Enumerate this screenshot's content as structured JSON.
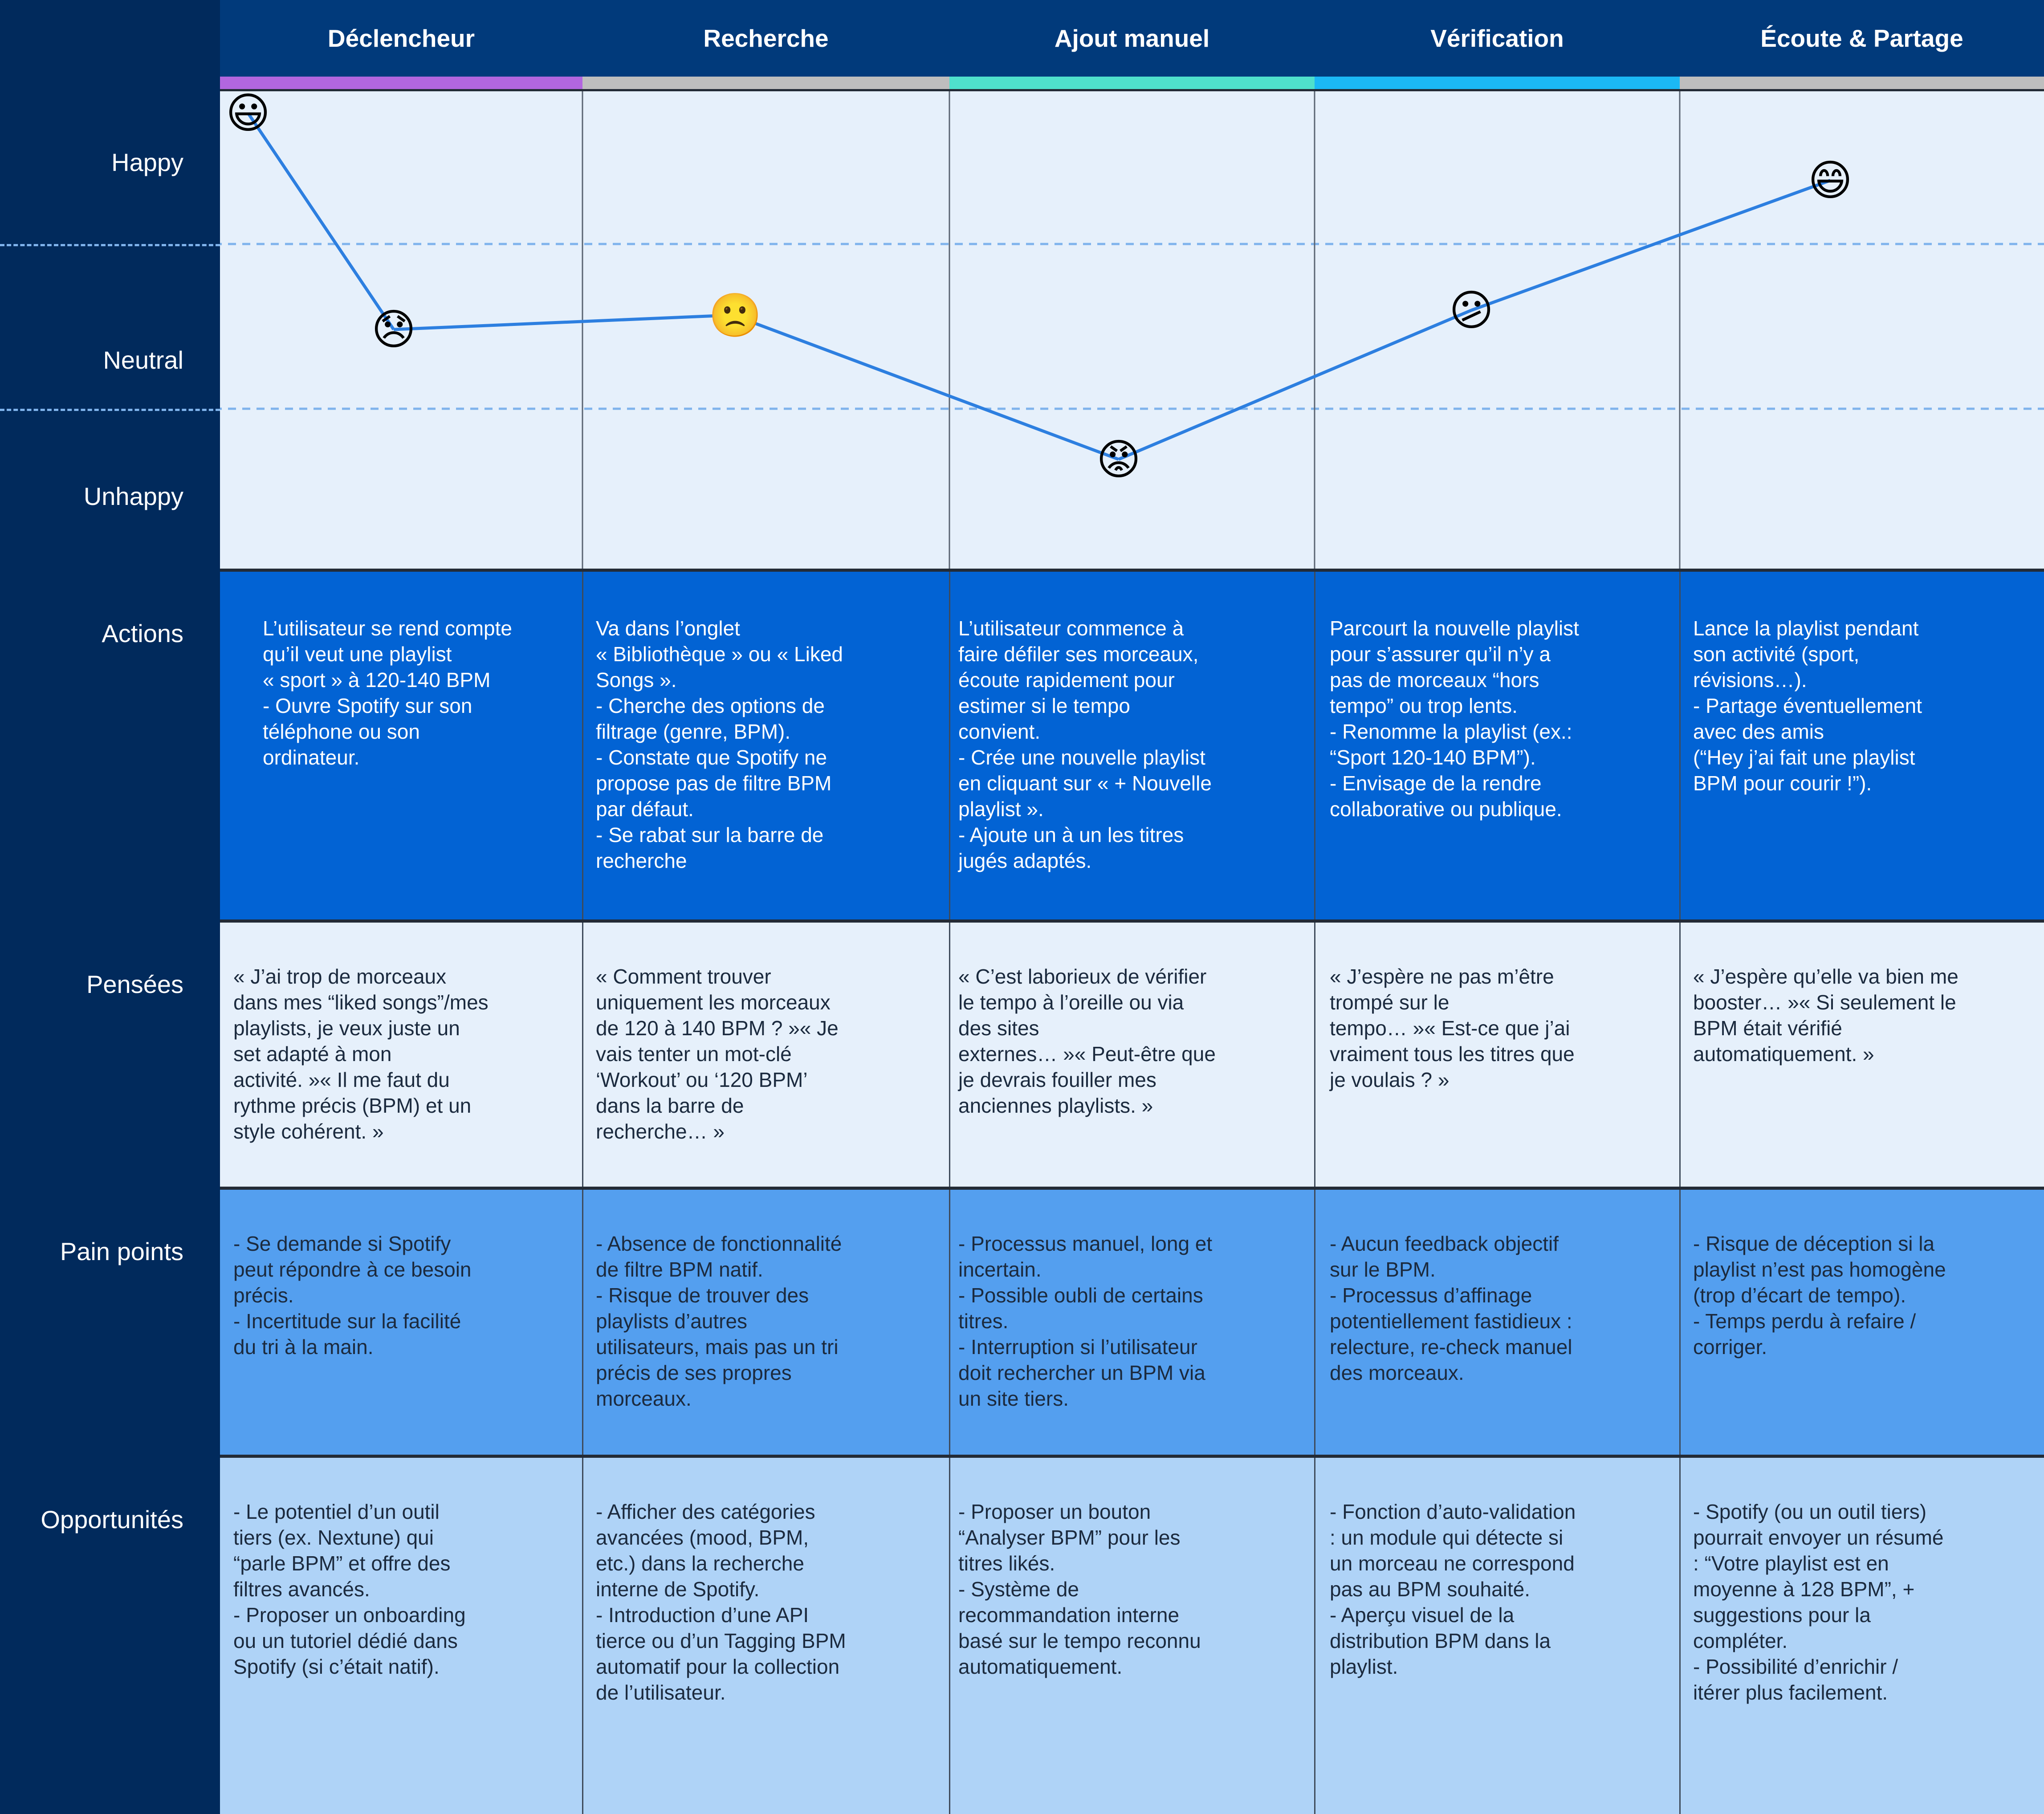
{
  "stages": [
    {
      "label": "Déclencheur",
      "accent": "#B266DF"
    },
    {
      "label": "Recherche",
      "accent": "#BEBEBE"
    },
    {
      "label": "Ajout manuel",
      "accent": "#4FE0CC"
    },
    {
      "label": "Vérification",
      "accent": "#1BB8F5"
    },
    {
      "label": "Écoute & Partage",
      "accent": "#BEBEBE"
    }
  ],
  "emotion_levels": {
    "happy": "Happy",
    "neutral": "Neutral",
    "unhappy": "Unhappy"
  },
  "emotion_points": [
    {
      "emoji": "😃",
      "name": "grinning-face-icon",
      "level": 0.95
    },
    {
      "emoji": "😞",
      "name": "disappointed-face-icon",
      "level": 0.5
    },
    {
      "emoji": "🙁",
      "name": "frowning-face-icon",
      "level": 0.53
    },
    {
      "emoji": "😡",
      "name": "angry-face-icon",
      "level": 0.23
    },
    {
      "emoji": "😕",
      "name": "confused-face-icon",
      "level": 0.54
    },
    {
      "emoji": "😄",
      "name": "smiling-face-icon",
      "level": 0.81
    }
  ],
  "rows": [
    {
      "label": "Actions",
      "cells": [
        "L’utilisateur se rend compte\nqu’il veut une playlist\n« sport » à 120-140 BPM\n- Ouvre Spotify sur son\ntéléphone ou son\nordinateur.",
        "Va dans l’onglet\n« Bibliothèque » ou « Liked\nSongs ».\n- Cherche des options de\nfiltrage (genre, BPM).\n- Constate que Spotify ne\npropose pas de filtre BPM\npar défaut.\n- Se rabat sur la barre de\nrecherche",
        "L’utilisateur commence à\nfaire défiler ses morceaux,\nécoute rapidement pour\nestimer si le tempo\nconvient.\n- Crée une nouvelle playlist\nen cliquant sur « + Nouvelle\nplaylist ».\n- Ajoute un à un les titres\njugés adaptés.",
        "Parcourt la nouvelle playlist\npour s’assurer qu’il n’y a\npas de morceaux “hors\ntempo” ou trop lents.\n- Renomme la playlist (ex.:\n“Sport 120-140 BPM”).\n- Envisage de la rendre\ncollaborative ou publique.",
        "Lance la playlist pendant\nson activité (sport,\nrévisions…).\n- Partage éventuellement\navec des amis\n(“Hey j’ai fait une playlist\nBPM pour courir !”)."
      ]
    },
    {
      "label": "Pensées",
      "cells": [
        "« J’ai trop de morceaux\ndans mes “liked songs”/mes\nplaylists, je veux juste un\nset adapté à mon\nactivité. »« Il me faut du\nrythme précis (BPM) et un\nstyle cohérent. »",
        "« Comment trouver\nuniquement les morceaux\nde 120 à 140 BPM ? »« Je\nvais tenter un mot-clé\n‘Workout’ ou ‘120 BPM’\ndans la barre de\nrecherche… »",
        "« C’est laborieux de vérifier\nle tempo à l’oreille ou via\ndes sites\nexternes… »« Peut-être que\nje devrais fouiller mes\nanciennes playlists. »",
        "« J’espère ne pas m’être\ntrompé sur le\ntempo… »« Est-ce que j’ai\nvraiment tous les titres que\nje voulais ? »",
        "« J’espère qu’elle va bien me\nbooster… »« Si seulement le\nBPM était vérifié\nautomatiquement. »"
      ]
    },
    {
      "label": "Pain points",
      "cells": [
        "- Se demande si Spotify\npeut répondre à ce besoin\nprécis.\n- Incertitude sur la facilité\ndu tri à la main.",
        "- Absence de fonctionnalité\nde filtre BPM natif.\n- Risque de trouver des\nplaylists d’autres\nutilisateurs, mais pas un tri\nprécis de ses propres\nmorceaux.",
        "- Processus manuel, long et\nincertain.\n- Possible oubli de certains\ntitres.\n- Interruption si l’utilisateur\ndoit rechercher un BPM via\nun site tiers.",
        "- Aucun feedback objectif\nsur le BPM.\n- Processus d’affinage\npotentiellement fastidieux :\nrelecture, re-check manuel\ndes morceaux.",
        "- Risque de déception si la\nplaylist n’est pas homogène\n(trop d’écart de tempo).\n- Temps perdu à refaire /\ncorriger."
      ]
    },
    {
      "label": "Opportunités",
      "cells": [
        "- Le potentiel d’un outil\ntiers (ex. Nextune) qui\n“parle BPM” et offre des\nfiltres avancés.\n- Proposer un onboarding\nou un tutoriel dédié dans\nSpotify (si c’était natif).",
        "- Afficher des catégories\navancées (mood, BPM,\netc.) dans la recherche\ninterne de Spotify.\n- Introduction d’une API\ntierce ou d’un Tagging BPM\nautomatif pour la collection\nde l’utilisateur.",
        "- Proposer un bouton\n“Analyser BPM” pour les\ntitres likés.\n- Système de\nrecommandation interne\nbasé sur le tempo reconnu\nautomatiquement.",
        "- Fonction d’auto-validation\n: un module qui détecte si\nun morceau ne correspond\npas au BPM souhaité.\n- Aperçu visuel de la\ndistribution BPM dans la\nplaylist.",
        "- Spotify (ou un outil tiers)\npourrait envoyer un résumé\n: “Votre playlist est en\nmoyenne à 128 BPM”, +\nsuggestions pour la\ncompléter.\n- Possibilité d’enrichir /\nitérer plus facilement."
      ]
    }
  ],
  "colors": {
    "background": "#012A5C",
    "header": "#013A7B",
    "emotion_bg": "#E6F0FB",
    "line": "#2D7FE0",
    "row_colors": [
      "#0263D4",
      "#E6F0FB",
      "#549FEF",
      "#AFD3F7"
    ],
    "row_text": [
      "#FFFFFF",
      "#1B2A3E",
      "#1B2A3E",
      "#1B2A3E"
    ]
  }
}
